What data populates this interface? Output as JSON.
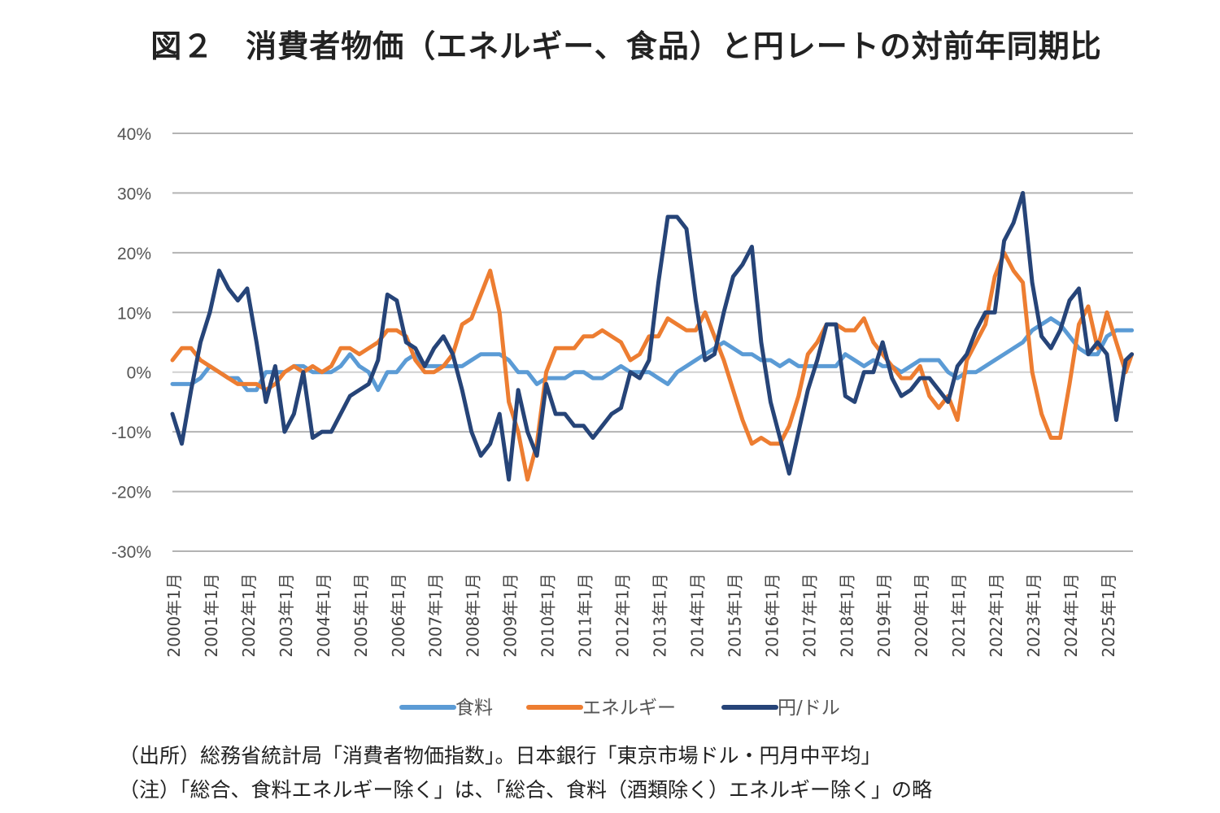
{
  "title": "図２　消費者物価（エネルギー、食品）と円レートの対前年同期比",
  "notes": [
    "（出所）総務省統計局「消費者物価指数」。日本銀行「東京市場ドル・円月中平均」",
    "（注）「総合、食料エネルギー除く」は、「総合、食料（酒類除く）エネルギー除く」の略"
  ],
  "chart_data": {
    "type": "line",
    "title": "",
    "xlabel": "",
    "ylabel": "",
    "ylim": [
      -30,
      40
    ],
    "yticks": [
      40,
      30,
      20,
      10,
      0,
      -10,
      -20,
      -30
    ],
    "ytick_labels": [
      "40%",
      "30%",
      "20%",
      "10%",
      "0%",
      "-10%",
      "-20%",
      "-30%"
    ],
    "xtick_labels": [
      "2000年1月",
      "2001年1月",
      "2002年1月",
      "2003年1月",
      "2004年1月",
      "2005年1月",
      "2006年1月",
      "2007年1月",
      "2008年1月",
      "2009年1月",
      "2010年1月",
      "2011年1月",
      "2012年1月",
      "2013年1月",
      "2014年1月",
      "2015年1月",
      "2016年1月",
      "2017年1月",
      "2018年1月",
      "2019年1月",
      "2020年1月",
      "2021年1月",
      "2022年1月",
      "2023年1月",
      "2024年1月",
      "2025年1月"
    ],
    "grid": true,
    "legend_position": "bottom",
    "x": [
      "2000-01",
      "2000-04",
      "2000-07",
      "2000-10",
      "2001-01",
      "2001-04",
      "2001-07",
      "2001-10",
      "2002-01",
      "2002-04",
      "2002-07",
      "2002-10",
      "2003-01",
      "2003-04",
      "2003-07",
      "2003-10",
      "2004-01",
      "2004-04",
      "2004-07",
      "2004-10",
      "2005-01",
      "2005-04",
      "2005-07",
      "2005-10",
      "2006-01",
      "2006-04",
      "2006-07",
      "2006-10",
      "2007-01",
      "2007-04",
      "2007-07",
      "2007-10",
      "2008-01",
      "2008-04",
      "2008-07",
      "2008-10",
      "2009-01",
      "2009-04",
      "2009-07",
      "2009-10",
      "2010-01",
      "2010-04",
      "2010-07",
      "2010-10",
      "2011-01",
      "2011-04",
      "2011-07",
      "2011-10",
      "2012-01",
      "2012-04",
      "2012-07",
      "2012-10",
      "2013-01",
      "2013-04",
      "2013-07",
      "2013-10",
      "2014-01",
      "2014-04",
      "2014-07",
      "2014-10",
      "2015-01",
      "2015-04",
      "2015-07",
      "2015-10",
      "2016-01",
      "2016-04",
      "2016-07",
      "2016-10",
      "2017-01",
      "2017-04",
      "2017-07",
      "2017-10",
      "2018-01",
      "2018-04",
      "2018-07",
      "2018-10",
      "2019-01",
      "2019-04",
      "2019-07",
      "2019-10",
      "2020-01",
      "2020-04",
      "2020-07",
      "2020-10",
      "2021-01",
      "2021-04",
      "2021-07",
      "2021-10",
      "2022-01",
      "2022-04",
      "2022-07",
      "2022-10",
      "2023-01",
      "2023-04",
      "2023-07",
      "2023-10",
      "2024-01",
      "2024-04",
      "2024-07",
      "2024-10",
      "2025-01",
      "2025-04",
      "2025-07",
      "2025-09"
    ],
    "series": [
      {
        "name": "食料",
        "color": "#5B9BD5",
        "values": [
          -2,
          -2,
          -2,
          -1,
          1,
          0,
          -1,
          -1,
          -3,
          -3,
          0,
          0,
          0,
          1,
          1,
          0,
          0,
          0,
          1,
          3,
          1,
          0,
          -3,
          0,
          0,
          2,
          3,
          1,
          1,
          1,
          1,
          1,
          2,
          3,
          3,
          3,
          2,
          0,
          0,
          -2,
          -1,
          -1,
          -1,
          0,
          0,
          -1,
          -1,
          0,
          1,
          0,
          0,
          0,
          -1,
          -2,
          0,
          1,
          2,
          3,
          4,
          5,
          4,
          3,
          3,
          2,
          2,
          1,
          2,
          1,
          1,
          1,
          1,
          1,
          3,
          2,
          1,
          2,
          1,
          1,
          0,
          1,
          2,
          2,
          2,
          0,
          -1,
          0,
          0,
          1,
          2,
          3,
          4,
          5,
          7,
          8,
          9,
          8,
          6,
          4,
          3,
          3,
          6,
          7,
          7,
          7
        ]
      },
      {
        "name": "エネルギー",
        "color": "#ED7D31",
        "values": [
          2,
          4,
          4,
          2,
          1,
          0,
          -1,
          -2,
          -2,
          -2,
          -3,
          -2,
          0,
          1,
          0,
          1,
          0,
          1,
          4,
          4,
          3,
          4,
          5,
          7,
          7,
          6,
          2,
          0,
          0,
          1,
          3,
          8,
          9,
          13,
          17,
          10,
          -5,
          -10,
          -18,
          -12,
          0,
          4,
          4,
          4,
          6,
          6,
          7,
          6,
          5,
          2,
          3,
          6,
          6,
          9,
          8,
          7,
          7,
          10,
          6,
          2,
          -3,
          -8,
          -12,
          -11,
          -12,
          -12,
          -9,
          -4,
          3,
          5,
          8,
          8,
          7,
          7,
          9,
          5,
          3,
          1,
          -1,
          -1,
          1,
          -4,
          -6,
          -4,
          -8,
          2,
          5,
          8,
          16,
          20,
          17,
          15,
          0,
          -7,
          -11,
          -11,
          -2,
          8,
          11,
          4,
          10,
          5,
          0,
          3
        ]
      },
      {
        "name": "円/ドル",
        "color": "#264478",
        "values": [
          -7,
          -12,
          -3,
          5,
          10,
          17,
          14,
          12,
          14,
          5,
          -5,
          1,
          -10,
          -7,
          0,
          -11,
          -10,
          -10,
          -7,
          -4,
          -3,
          -2,
          2,
          13,
          12,
          5,
          4,
          1,
          4,
          6,
          3,
          -3,
          -10,
          -14,
          -12,
          -7,
          -18,
          -3,
          -10,
          -14,
          -2,
          -7,
          -7,
          -9,
          -9,
          -11,
          -9,
          -7,
          -6,
          0,
          -1,
          2,
          15,
          26,
          26,
          24,
          12,
          2,
          3,
          10,
          16,
          18,
          21,
          5,
          -5,
          -11,
          -17,
          -10,
          -3,
          2,
          8,
          8,
          -4,
          -5,
          0,
          0,
          5,
          -1,
          -4,
          -3,
          -1,
          -1,
          -3,
          -5,
          1,
          3,
          7,
          10,
          10,
          22,
          25,
          30,
          15,
          6,
          4,
          7,
          12,
          14,
          3,
          5,
          3,
          -8,
          2,
          3
        ]
      }
    ]
  }
}
